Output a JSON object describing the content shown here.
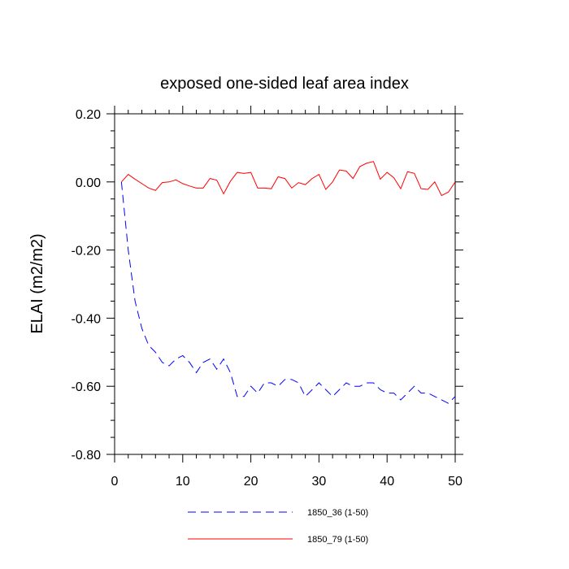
{
  "chart_data": {
    "type": "line",
    "title": "exposed one-sided leaf area index",
    "xlabel": "",
    "ylabel": "ELAI  (m2/m2)",
    "xlim": [
      0,
      50
    ],
    "ylim": [
      -0.8,
      0.2
    ],
    "xticks": [
      "0",
      "10",
      "20",
      "30",
      "40",
      "50"
    ],
    "yticks": [
      "0.20",
      "0.00",
      "-0.20",
      "-0.40",
      "-0.60",
      "-0.80"
    ],
    "grid": false,
    "legend_position": "bottom",
    "series": [
      {
        "name": "1850_36 (1-50)",
        "color": "#0000ff",
        "style": "dashed",
        "x": [
          1,
          2,
          3,
          4,
          5,
          6,
          7,
          8,
          9,
          10,
          11,
          12,
          13,
          14,
          15,
          16,
          17,
          18,
          19,
          20,
          21,
          22,
          23,
          24,
          25,
          26,
          27,
          28,
          29,
          30,
          31,
          32,
          33,
          34,
          35,
          36,
          37,
          38,
          39,
          40,
          41,
          42,
          43,
          44,
          45,
          46,
          47,
          48,
          49,
          50
        ],
        "values": [
          0.0,
          -0.2,
          -0.35,
          -0.43,
          -0.48,
          -0.5,
          -0.53,
          -0.54,
          -0.52,
          -0.51,
          -0.53,
          -0.56,
          -0.53,
          -0.52,
          -0.55,
          -0.52,
          -0.56,
          -0.63,
          -0.63,
          -0.6,
          -0.62,
          -0.59,
          -0.59,
          -0.6,
          -0.58,
          -0.58,
          -0.59,
          -0.63,
          -0.61,
          -0.59,
          -0.61,
          -0.63,
          -0.61,
          -0.59,
          -0.6,
          -0.6,
          -0.59,
          -0.59,
          -0.61,
          -0.62,
          -0.62,
          -0.64,
          -0.62,
          -0.6,
          -0.62,
          -0.62,
          -0.63,
          -0.64,
          -0.65,
          -0.63
        ]
      },
      {
        "name": "1850_79 (1-50)",
        "color": "#ff0000",
        "style": "solid",
        "x": [
          1,
          2,
          3,
          4,
          5,
          6,
          7,
          8,
          9,
          10,
          11,
          12,
          13,
          14,
          15,
          16,
          17,
          18,
          19,
          20,
          21,
          22,
          23,
          24,
          25,
          26,
          27,
          28,
          29,
          30,
          31,
          32,
          33,
          34,
          35,
          36,
          37,
          38,
          39,
          40,
          41,
          42,
          43,
          44,
          45,
          46,
          47,
          48,
          49,
          50
        ],
        "values": [
          0.0,
          0.022,
          0.008,
          -0.005,
          -0.018,
          -0.025,
          -0.002,
          0.0,
          0.006,
          -0.005,
          -0.012,
          -0.018,
          -0.018,
          0.01,
          0.005,
          -0.035,
          0.002,
          0.028,
          0.025,
          0.028,
          -0.018,
          -0.018,
          -0.02,
          0.015,
          0.01,
          -0.018,
          -0.002,
          -0.008,
          0.01,
          0.022,
          -0.022,
          0.0,
          0.035,
          0.032,
          0.01,
          0.045,
          0.055,
          0.06,
          0.008,
          0.028,
          0.012,
          -0.02,
          0.03,
          0.025,
          -0.02,
          -0.022,
          0.0,
          -0.04,
          -0.03,
          0.0
        ]
      }
    ]
  }
}
